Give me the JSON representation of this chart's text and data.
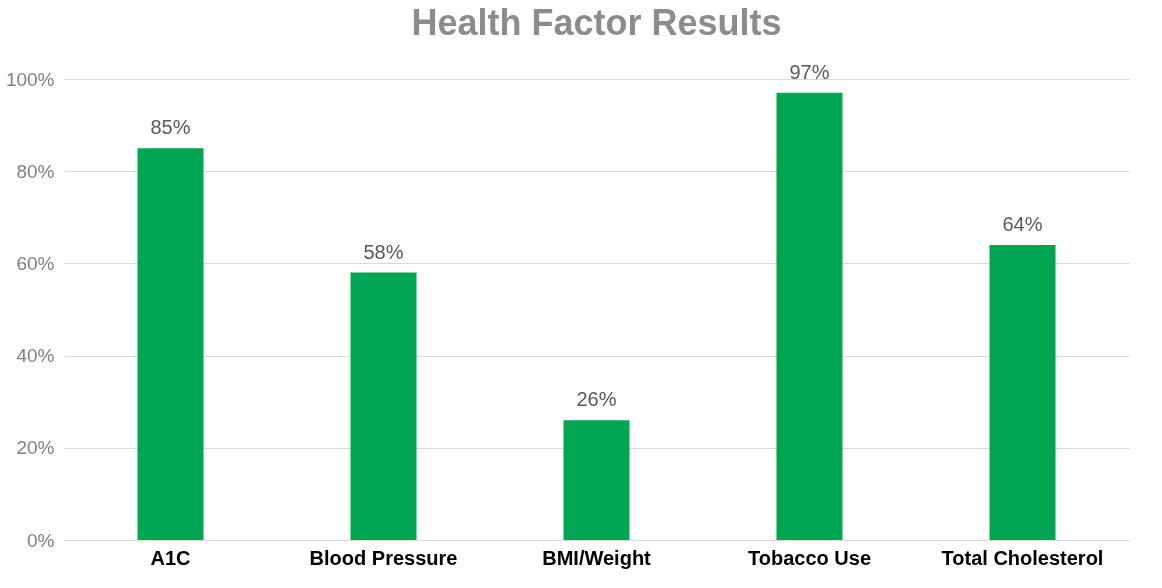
{
  "chart_data": {
    "type": "bar",
    "title": "Health Factor Results",
    "categories": [
      "A1C",
      "Blood Pressure",
      "BMI/Weight",
      "Tobacco Use",
      "Total Cholesterol"
    ],
    "values": [
      85,
      58,
      26,
      97,
      64
    ],
    "value_labels": [
      "85%",
      "58%",
      "26%",
      "97%",
      "64%"
    ],
    "color": "#00a651",
    "ylim": [
      0,
      100
    ],
    "yticks": [
      {
        "value": 0,
        "label": "0%"
      },
      {
        "value": 20,
        "label": "20%"
      },
      {
        "value": 40,
        "label": "40%"
      },
      {
        "value": 60,
        "label": "60%"
      },
      {
        "value": 80,
        "label": "80%"
      },
      {
        "value": 100,
        "label": "100%"
      }
    ],
    "grid": "y"
  }
}
